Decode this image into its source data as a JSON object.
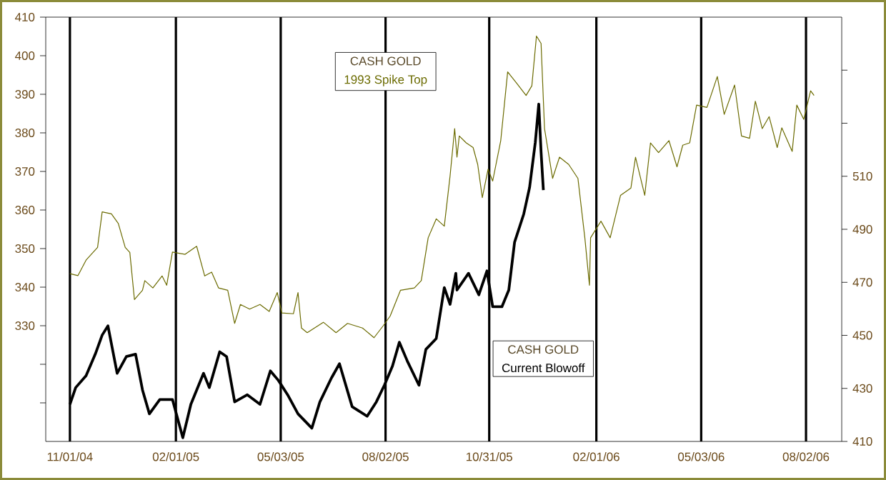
{
  "chart_data": {
    "type": "line",
    "annotations": [
      "CASH GOLD",
      "CASH GOLD"
    ],
    "xlim": [
      "2004-10-11",
      "2006-09-02"
    ],
    "xticks": [
      {
        "value": "2004-11-01",
        "label": "11/01/04"
      },
      {
        "value": "2005-02-01",
        "label": "02/01/05"
      },
      {
        "value": "2005-05-03",
        "label": "05/03/05"
      },
      {
        "value": "2005-08-02",
        "label": "08/02/05"
      },
      {
        "value": "2005-10-31",
        "label": "10/31/05"
      },
      {
        "value": "2006-02-01",
        "label": "02/01/06"
      },
      {
        "value": "2006-05-03",
        "label": "05/03/06"
      },
      {
        "value": "2006-08-02",
        "label": "08/02/06"
      }
    ],
    "ylim": [
      300,
      410
    ],
    "yticks": [
      {
        "value": 310,
        "label": null
      },
      {
        "value": 320,
        "label": null
      },
      330,
      340,
      350,
      360,
      370,
      380,
      390,
      400,
      410
    ],
    "y2lim": [
      410,
      570
    ],
    "y2ticks": [
      410,
      430,
      450,
      470,
      490,
      510,
      {
        "value": 530,
        "label": null
      },
      {
        "value": 550,
        "label": null
      }
    ],
    "grid": "x",
    "series": [
      {
        "name": "1993 Spike Top",
        "color": "#6b6b00",
        "x": [
          "2004-11-01",
          "2004-11-08",
          "2004-11-15",
          "2004-11-25",
          "2004-11-29",
          "2004-12-07",
          "2004-12-13",
          "2004-12-19",
          "2004-12-23",
          "2004-12-27",
          "2005-01-03",
          "2005-01-05",
          "2005-01-12",
          "2005-01-20",
          "2005-01-24",
          "2005-01-29",
          "2005-02-09",
          "2005-02-19",
          "2005-02-26",
          "2005-03-04",
          "2005-03-10",
          "2005-03-18",
          "2005-03-24",
          "2005-03-29",
          "2005-04-06",
          "2005-04-15",
          "2005-04-23",
          "2005-04-30",
          "2005-05-04",
          "2005-05-14",
          "2005-05-18",
          "2005-05-21",
          "2005-05-26",
          "2005-06-09",
          "2005-06-20",
          "2005-06-30",
          "2005-07-13",
          "2005-07-23",
          "2005-07-31",
          "2005-08-06",
          "2005-08-15",
          "2005-08-27",
          "2005-09-02",
          "2005-09-08",
          "2005-09-15",
          "2005-09-22",
          "2005-09-27",
          "2005-10-01",
          "2005-10-03",
          "2005-10-05",
          "2005-10-11",
          "2005-10-17",
          "2005-10-21",
          "2005-10-25",
          "2005-10-30",
          "2005-11-03",
          "2005-11-10",
          "2005-11-16",
          "2005-11-24",
          "2005-12-02",
          "2005-12-07",
          "2005-12-11",
          "2005-12-15",
          "2005-12-18",
          "2005-12-25",
          "2005-12-31",
          "2006-01-08",
          "2006-01-16",
          "2006-01-22",
          "2006-01-26",
          "2006-01-27",
          "2006-02-05",
          "2006-02-13",
          "2006-02-22",
          "2006-03-03",
          "2006-03-07",
          "2006-03-15",
          "2006-03-20",
          "2006-03-27",
          "2006-04-05",
          "2006-04-12",
          "2006-04-17",
          "2006-04-23",
          "2006-04-29",
          "2006-05-08",
          "2006-05-17",
          "2006-05-23",
          "2006-06-01",
          "2006-06-07",
          "2006-06-14",
          "2006-06-19",
          "2006-06-25",
          "2006-07-01",
          "2006-07-08",
          "2006-07-12",
          "2006-07-21",
          "2006-07-25",
          "2006-07-31",
          "2006-08-06",
          "2006-08-09"
        ],
        "values": [
          343.5,
          343,
          347,
          350.3,
          359.5,
          359,
          356.5,
          350.3,
          349,
          336.8,
          339.2,
          341.7,
          339.8,
          342.9,
          340.5,
          349.1,
          348.5,
          350.6,
          342.9,
          343.9,
          339.8,
          339.2,
          330.6,
          335.5,
          334.3,
          335.5,
          333.7,
          338.6,
          333.3,
          333.1,
          338.6,
          329.4,
          328.2,
          330.9,
          328.2,
          330.6,
          329.4,
          326.9,
          330,
          332.5,
          339.2,
          339.8,
          341.7,
          352.8,
          357.7,
          355.8,
          368.8,
          381.1,
          373.7,
          379.2,
          377.4,
          376.2,
          371.8,
          363.2,
          370.6,
          367.5,
          378,
          395.8,
          392.8,
          389.7,
          392.2,
          405.1,
          403.2,
          381.1,
          368.2,
          373.7,
          371.8,
          368.2,
          352.8,
          340.5,
          352.8,
          357.1,
          352.8,
          363.8,
          365.7,
          373.7,
          363.8,
          377.4,
          374.9,
          378,
          371.2,
          376.8,
          377.4,
          387.2,
          386.6,
          394.6,
          384.8,
          392.4,
          379.2,
          378.6,
          388.2,
          381.1,
          384.2,
          376.2,
          381.3,
          375.2,
          387.2,
          383.5,
          390.9,
          389.7
        ]
      },
      {
        "name": "Current Blowoff",
        "color": "#000000",
        "axis": "y2",
        "x": [
          "2004-11-01",
          "2004-11-06",
          "2004-11-15",
          "2004-11-23",
          "2004-11-29",
          "2004-12-04",
          "2004-12-12",
          "2004-12-20",
          "2004-12-28",
          "2005-01-03",
          "2005-01-09",
          "2005-01-18",
          "2005-01-29",
          "2005-02-07",
          "2005-02-14",
          "2005-02-25",
          "2005-03-02",
          "2005-03-11",
          "2005-03-17",
          "2005-03-24",
          "2005-04-04",
          "2005-04-15",
          "2005-04-24",
          "2005-05-01",
          "2005-05-09",
          "2005-05-18",
          "2005-05-30",
          "2005-06-06",
          "2005-06-16",
          "2005-06-23",
          "2005-07-04",
          "2005-07-17",
          "2005-07-25",
          "2005-08-01",
          "2005-08-08",
          "2005-08-14",
          "2005-08-21",
          "2005-08-31",
          "2005-09-06",
          "2005-09-15",
          "2005-09-22",
          "2005-09-27",
          "2005-10-02",
          "2005-10-03",
          "2005-10-13",
          "2005-10-22",
          "2005-10-29",
          "2005-11-03",
          "2005-11-11",
          "2005-11-17",
          "2005-11-22",
          "2005-11-30",
          "2005-12-05",
          "2005-12-10",
          "2005-12-13",
          "2005-12-15",
          "2005-12-17"
        ],
        "values": [
          424,
          430.3,
          434.8,
          442.9,
          450.1,
          453.6,
          435.7,
          442,
          442.9,
          429.4,
          420.4,
          425.8,
          425.8,
          411.4,
          424,
          435.7,
          430.3,
          443.8,
          442,
          424.9,
          427.6,
          424,
          436.6,
          433,
          427.6,
          420.4,
          415,
          424.9,
          433.9,
          439.3,
          423.1,
          419.5,
          424.9,
          431.2,
          438.4,
          447.4,
          440.2,
          431.2,
          444.7,
          448.8,
          468,
          461.7,
          473.4,
          467.1,
          473.4,
          465.3,
          474.3,
          460.8,
          460.8,
          467.1,
          485.1,
          495.8,
          505.7,
          522.8,
          537.2,
          519.2,
          504.8
        ]
      }
    ]
  }
}
